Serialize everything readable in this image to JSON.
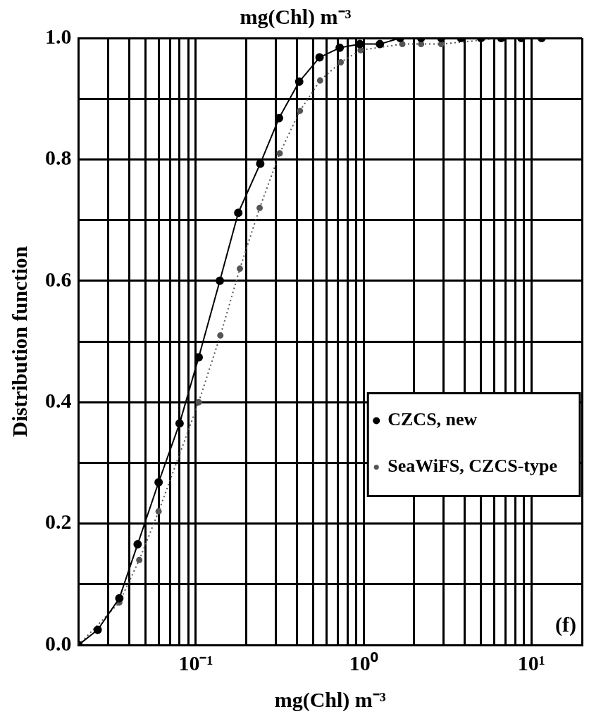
{
  "chart_data": {
    "type": "line",
    "title": "mg(Chl) m⁻³",
    "xlabel": "mg(Chl) m⁻³",
    "ylabel": "Distribution function",
    "log": "x",
    "grid": true,
    "legend": "center right",
    "marker": "circle",
    "xlim": [
      0.02,
      20
    ],
    "ylim": [
      0,
      1
    ],
    "xticks": [
      {
        "value": 0.02,
        "label": null
      },
      {
        "value": 0.03,
        "label": null
      },
      {
        "value": 0.04,
        "label": null
      },
      {
        "value": 0.05,
        "label": null
      },
      {
        "value": 0.06,
        "label": null
      },
      {
        "value": 0.07,
        "label": null
      },
      {
        "value": 0.08,
        "label": null
      },
      {
        "value": 0.09,
        "label": null
      },
      {
        "value": 0.1,
        "label": "10⁻¹"
      },
      {
        "value": 0.2,
        "label": null
      },
      {
        "value": 0.3,
        "label": null
      },
      {
        "value": 0.4,
        "label": null
      },
      {
        "value": 0.5,
        "label": null
      },
      {
        "value": 0.6,
        "label": null
      },
      {
        "value": 0.7,
        "label": null
      },
      {
        "value": 0.8,
        "label": null
      },
      {
        "value": 0.9,
        "label": null
      },
      {
        "value": 1,
        "label": "10⁰"
      },
      {
        "value": 2,
        "label": null
      },
      {
        "value": 3,
        "label": null
      },
      {
        "value": 4,
        "label": null
      },
      {
        "value": 5,
        "label": null
      },
      {
        "value": 6,
        "label": null
      },
      {
        "value": 7,
        "label": null
      },
      {
        "value": 8,
        "label": null
      },
      {
        "value": 9,
        "label": null
      },
      {
        "value": 10,
        "label": "10¹"
      },
      {
        "value": 20,
        "label": null
      }
    ],
    "yticks": [
      {
        "value": 0,
        "label": "0.0"
      },
      {
        "value": 0.1,
        "label": null
      },
      {
        "value": 0.2,
        "label": "0.2"
      },
      {
        "value": 0.3,
        "label": null
      },
      {
        "value": 0.4,
        "label": "0.4"
      },
      {
        "value": 0.5,
        "label": null
      },
      {
        "value": 0.6,
        "label": "0.6"
      },
      {
        "value": 0.7,
        "label": null
      },
      {
        "value": 0.8,
        "label": "0.8"
      },
      {
        "value": 0.9,
        "label": null
      },
      {
        "value": 1,
        "label": "1.0"
      }
    ],
    "annotations": [
      "(f)"
    ],
    "series": [
      {
        "name": "CZCS, new",
        "color": "#000000",
        "line_style": "solid",
        "x": [
          0.02,
          0.026,
          0.035,
          0.045,
          0.06,
          0.08,
          0.104,
          0.139,
          0.179,
          0.242,
          0.313,
          0.413,
          0.546,
          0.72,
          0.95,
          1.25,
          1.65,
          2.2,
          2.9,
          3.8,
          5,
          6.6,
          8.7,
          11.5
        ],
        "values": [
          0,
          0.025,
          0.077,
          0.166,
          0.268,
          0.365,
          0.474,
          0.6,
          0.712,
          0.793,
          0.868,
          0.928,
          0.968,
          0.984,
          0.99,
          0.99,
          1,
          1,
          1,
          1,
          1,
          1,
          1,
          1
        ]
      },
      {
        "name": "SeaWiFS, CZCS-type",
        "color": "#555555",
        "line_style": "dotted",
        "x": [
          0.02,
          0.026,
          0.035,
          0.046,
          0.06,
          0.104,
          0.14,
          0.183,
          0.24,
          0.316,
          0.417,
          0.55,
          0.73,
          0.96,
          1.27,
          1.7,
          2.2,
          2.9,
          3.9,
          5.1,
          6.7,
          8.8,
          11.6
        ],
        "values": [
          0,
          null,
          0.07,
          0.14,
          0.22,
          0.4,
          0.51,
          0.62,
          0.72,
          0.81,
          0.88,
          0.93,
          0.96,
          0.98,
          null,
          0.99,
          0.99,
          0.99,
          null,
          null,
          1,
          1,
          1
        ]
      }
    ]
  }
}
